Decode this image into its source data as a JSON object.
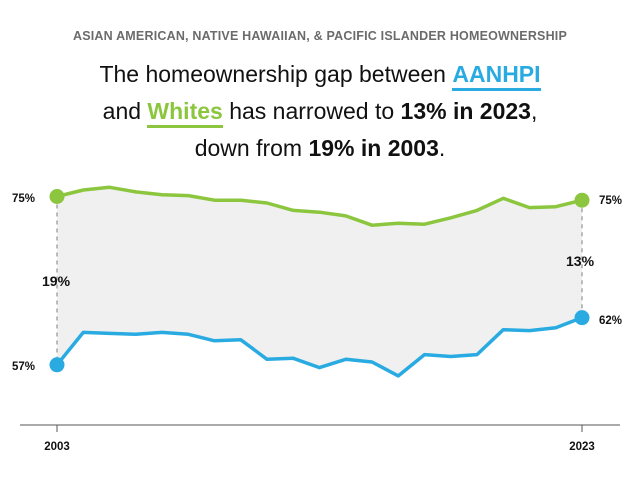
{
  "kicker": "ASIAN AMERICAN, NATIVE HAWAIIAN, & PACIFIC ISLANDER HOMEOWNERSHIP",
  "headline": {
    "part1": "The homeownership gap between ",
    "group_a": "AANHPI",
    "part2": "and ",
    "group_w": "Whites",
    "part3": " has narrowed to ",
    "gap_now": "13% in 2023",
    "part4": ",",
    "part5": "down from ",
    "gap_then": "19% in 2003",
    "part6": "."
  },
  "colors": {
    "whites": "#8cc63f",
    "aanhpi": "#29abe2",
    "fill": "#f0f0f0",
    "axis": "#555555"
  },
  "chart_data": {
    "type": "line",
    "x": [
      2003,
      2004,
      2005,
      2006,
      2007,
      2008,
      2009,
      2010,
      2011,
      2012,
      2013,
      2014,
      2015,
      2016,
      2017,
      2018,
      2019,
      2020,
      2021,
      2022,
      2023
    ],
    "series": [
      {
        "key": "whites",
        "values": [
          75.0,
          75.7,
          76.0,
          75.5,
          75.2,
          75.1,
          74.6,
          74.6,
          74.3,
          73.5,
          73.3,
          72.9,
          71.9,
          72.1,
          72.0,
          72.7,
          73.5,
          74.8,
          73.8,
          73.9,
          74.6
        ]
      },
      {
        "key": "aanhpi",
        "values": [
          56.8,
          60.3,
          60.2,
          60.1,
          60.3,
          60.1,
          59.4,
          59.5,
          57.4,
          57.5,
          56.5,
          57.4,
          57.1,
          55.6,
          57.9,
          57.7,
          57.9,
          60.6,
          60.5,
          60.8,
          61.9
        ]
      }
    ],
    "end_labels": {
      "whites_start": "75%",
      "whites_end": "75%",
      "aanhpi_start": "57%",
      "aanhpi_end": "62%"
    },
    "gap_labels": {
      "start": "19%",
      "end": "13%"
    },
    "x_tick_labels": [
      "2003",
      "2023"
    ],
    "ylim": [
      50,
      80
    ],
    "grid": false
  }
}
